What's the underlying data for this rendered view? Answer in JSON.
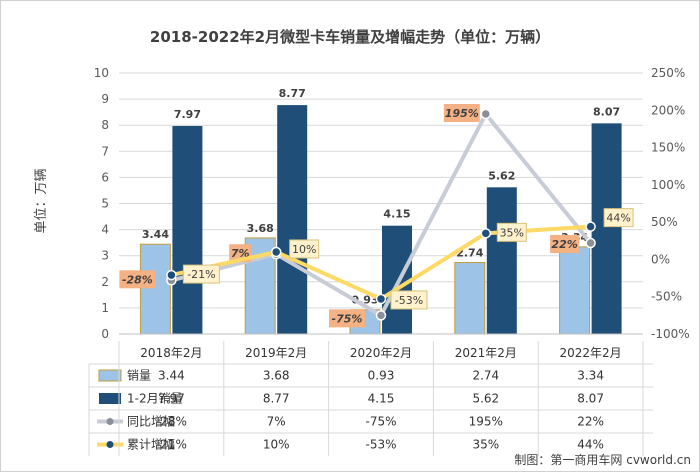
{
  "chart_data": {
    "type": "bar",
    "title": "2018-2022年2月微型卡车销量及增幅走势（单位：万辆）",
    "ylabel": "单位：万辆",
    "categories": [
      "2018年2月",
      "2019年2月",
      "2020年2月",
      "2021年2月",
      "2022年2月"
    ],
    "ylim": [
      0,
      10
    ],
    "y_ticks": [
      "0",
      "1",
      "2",
      "3",
      "4",
      "5",
      "6",
      "7",
      "8",
      "9",
      "10"
    ],
    "y2lim": [
      -100,
      250
    ],
    "y2_ticks": [
      "-100%",
      "-50%",
      "0%",
      "50%",
      "100%",
      "150%",
      "200%",
      "250%"
    ],
    "legend_placement": "table-below",
    "series": [
      {
        "name": "销量",
        "kind": "bar",
        "axis": "left",
        "color": "#9dc3e6",
        "edge": "#bf9f3f",
        "values": [
          3.44,
          3.68,
          0.93,
          2.74,
          3.34
        ],
        "labels": [
          "3.44",
          "3.68",
          "0.93",
          "2.74",
          "3.34"
        ]
      },
      {
        "name": "1-2月销量",
        "kind": "bar",
        "axis": "left",
        "color": "#1f4e79",
        "values": [
          7.97,
          8.77,
          4.15,
          5.62,
          8.07
        ],
        "labels": [
          "7.97",
          "8.77",
          "4.15",
          "5.62",
          "8.07"
        ]
      },
      {
        "name": "同比增幅",
        "kind": "line",
        "axis": "right",
        "color": "#c8ccd6",
        "marker": "#8a8f99",
        "label_bg": "#f4b183",
        "values": [
          -28,
          7,
          -75,
          195,
          22
        ],
        "labels": [
          "-28%",
          "7%",
          "-75%",
          "195%",
          "22%"
        ]
      },
      {
        "name": "累计增幅",
        "kind": "line",
        "axis": "right",
        "color": "#ffd966",
        "marker": "#1f4e79",
        "label_bg": "#fff2cc",
        "values": [
          -21,
          10,
          -53,
          35,
          44
        ],
        "labels": [
          "-21%",
          "10%",
          "-53%",
          "35%",
          "44%"
        ]
      }
    ],
    "table": {
      "rows": [
        {
          "name": "销量",
          "cells": [
            "3.44",
            "3.68",
            "0.93",
            "2.74",
            "3.34"
          ]
        },
        {
          "name": "1-2月销量",
          "cells": [
            "7.97",
            "8.77",
            "4.15",
            "5.62",
            "8.07"
          ]
        },
        {
          "name": "同比增幅",
          "cells": [
            "-28%",
            "7%",
            "-75%",
            "195%",
            "22%"
          ]
        },
        {
          "name": "累计增幅",
          "cells": [
            "-21%",
            "10%",
            "-53%",
            "35%",
            "44%"
          ]
        }
      ]
    }
  },
  "credit": "制图：第一商用车网 cvworld.cn"
}
